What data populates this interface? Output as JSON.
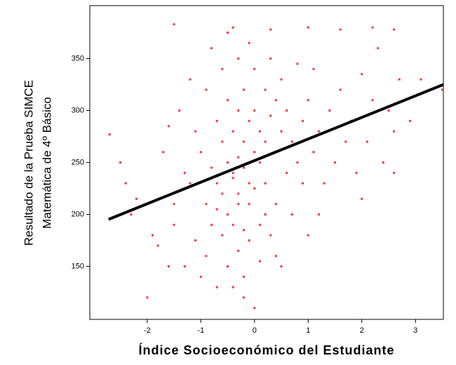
{
  "chart_data": {
    "type": "scatter",
    "xlabel": "Índice Socioeconómico del Estudiante",
    "ylabel": [
      "Resultado de la Prueba SIMCE",
      "Matemática de 4º Básico"
    ],
    "xlim": [
      -3.07,
      3.52
    ],
    "ylim": [
      99,
      401
    ],
    "xticks": [
      -2,
      -1,
      0,
      1,
      2,
      3
    ],
    "yticks": [
      150,
      200,
      250,
      300,
      350
    ],
    "grid": false,
    "series": [
      {
        "color": "#ff3333",
        "x": [
          -2.7,
          -2.5,
          -2.3,
          -2.2,
          -2.0,
          -1.9,
          -1.8,
          -1.7,
          -1.6,
          -1.5,
          -1.5,
          -1.4,
          -1.3,
          -1.3,
          -1.2,
          -1.2,
          -1.1,
          -1.1,
          -1.0,
          -1.0,
          -0.9,
          -0.9,
          -0.9,
          -0.8,
          -0.8,
          -0.8,
          -0.7,
          -0.7,
          -0.7,
          -0.7,
          -0.6,
          -0.6,
          -0.6,
          -0.6,
          -0.5,
          -0.5,
          -0.5,
          -0.5,
          -0.5,
          -0.4,
          -0.4,
          -0.4,
          -0.4,
          -0.4,
          -0.3,
          -0.3,
          -0.3,
          -0.3,
          -0.3,
          -0.3,
          -0.2,
          -0.2,
          -0.2,
          -0.2,
          -0.2,
          -0.1,
          -0.1,
          -0.1,
          -0.1,
          -0.1,
          0.0,
          0.0,
          0.0,
          0.0,
          0.0,
          0.1,
          0.1,
          0.1,
          0.1,
          0.2,
          0.2,
          0.2,
          0.2,
          0.3,
          0.3,
          0.3,
          0.4,
          0.4,
          0.4,
          0.5,
          0.5,
          0.5,
          0.6,
          0.6,
          0.7,
          0.7,
          0.8,
          0.8,
          0.9,
          0.9,
          1.0,
          1.0,
          1.1,
          1.1,
          1.2,
          1.3,
          1.4,
          1.5,
          1.6,
          1.7,
          1.8,
          1.9,
          2.0,
          2.1,
          2.2,
          2.3,
          2.4,
          2.5,
          2.6,
          2.7,
          2.9,
          3.1,
          3.5,
          -2.4,
          -1.6,
          -0.2,
          0.4,
          1.2,
          2.0,
          2.6,
          -1.5,
          -0.4,
          0.3,
          1.0,
          1.6,
          2.2,
          2.6
        ],
        "y": [
          277,
          250,
          200,
          215,
          120,
          180,
          170,
          260,
          150,
          210,
          190,
          300,
          240,
          150,
          230,
          330,
          175,
          280,
          140,
          260,
          320,
          210,
          160,
          245,
          190,
          360,
          130,
          230,
          290,
          205,
          270,
          180,
          340,
          220,
          250,
          150,
          310,
          200,
          375,
          235,
          190,
          280,
          130,
          240,
          300,
          220,
          165,
          255,
          350,
          210,
          245,
          185,
          320,
          140,
          270,
          230,
          290,
          175,
          365,
          210,
          260,
          110,
          300,
          225,
          340,
          250,
          190,
          280,
          155,
          270,
          230,
          320,
          200,
          295,
          180,
          350,
          260,
          210,
          310,
          280,
          150,
          330,
          240,
          300,
          270,
          200,
          345,
          250,
          290,
          230,
          310,
          180,
          260,
          340,
          280,
          230,
          300,
          250,
          320,
          270,
          290,
          240,
          335,
          270,
          310,
          360,
          250,
          300,
          280,
          330,
          290,
          330,
          320,
          230,
          285,
          120,
          160,
          200,
          215,
          240,
          383,
          380,
          378,
          380,
          378,
          380,
          378
        ]
      }
    ],
    "trend": {
      "color": "#000000",
      "x": [
        -2.72,
        3.52
      ],
      "y": [
        195.3,
        325
      ]
    }
  }
}
